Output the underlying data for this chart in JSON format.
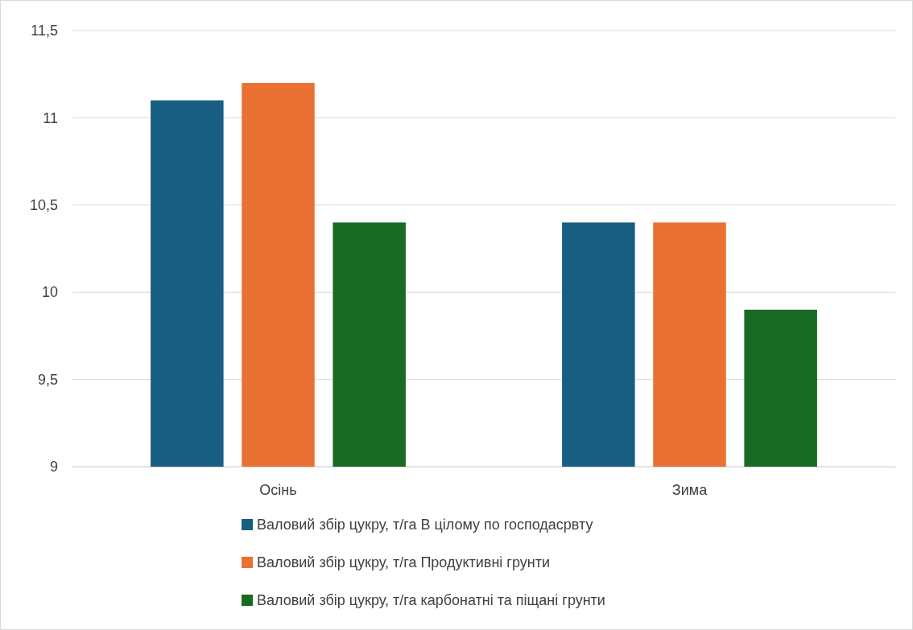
{
  "chart_data": {
    "type": "bar",
    "categories": [
      "Осінь",
      "Зима"
    ],
    "series": [
      {
        "name": "Валовий збір цукру, т/га В цілому по господасрвту",
        "color": "#175e82",
        "values": [
          11.1,
          10.4
        ]
      },
      {
        "name": "Валовий збір цукру, т/га Продуктивні грунти",
        "color": "#e97132",
        "values": [
          11.2,
          10.4
        ]
      },
      {
        "name": "Валовий збір цукру, т/га карбонатні та піщані грунти",
        "color": "#196b24",
        "values": [
          10.4,
          9.9
        ]
      }
    ],
    "ylim": [
      9,
      11.5
    ],
    "yticks": [
      9,
      {
        "value": 9.5,
        "label": "9,5"
      },
      10,
      {
        "value": 10.5,
        "label": "10,5"
      },
      11,
      {
        "value": 11.5,
        "label": "11,5"
      }
    ],
    "grid": "y",
    "legend": "bottom"
  }
}
